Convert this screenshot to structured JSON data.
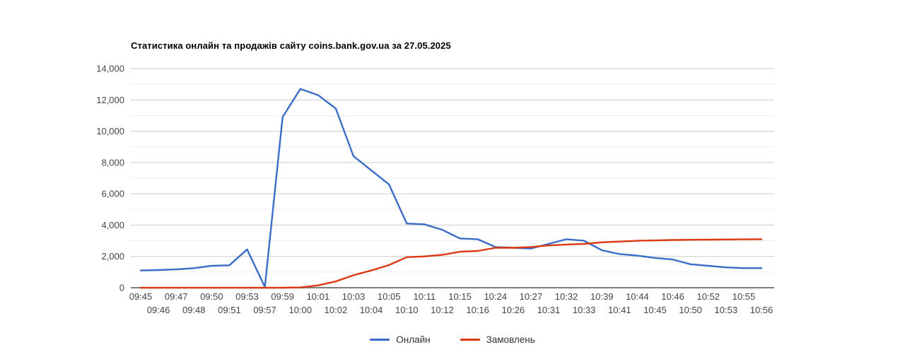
{
  "chart": {
    "title": "Статистика онлайн та продажів сайту coins.bank.gov.ua за 27.05.2025"
  },
  "chart_data": {
    "type": "line",
    "title": "Статистика онлайн та продажів сайту coins.bank.gov.ua за 27.05.2025",
    "xlabel": "",
    "ylabel": "",
    "ylim": [
      0,
      14000
    ],
    "y_tick_step": 2000,
    "y_minor_step": 1000,
    "y_tick_labels": [
      "0",
      "2,000",
      "4,000",
      "6,000",
      "8,000",
      "10,000",
      "12,000",
      "14,000"
    ],
    "grid": "horizontal-only",
    "legend_position": "bottom",
    "categories": [
      "09:45",
      "09:46",
      "09:47",
      "09:48",
      "09:50",
      "09:51",
      "09:53",
      "09:57",
      "09:59",
      "10:00",
      "10:01",
      "10:02",
      "10:03",
      "10:04",
      "10:05",
      "10:10",
      "10:11",
      "10:12",
      "10:15",
      "10:16",
      "10:24",
      "10:26",
      "10:27",
      "10:31",
      "10:32",
      "10:33",
      "10:39",
      "10:41",
      "10:44",
      "10:45",
      "10:46",
      "10:50",
      "10:52",
      "10:53",
      "10:55",
      "10:56"
    ],
    "series": [
      {
        "name": "Онлайн",
        "color": "#3b6cc7",
        "values": [
          1100,
          1130,
          1170,
          1250,
          1400,
          1430,
          2450,
          50,
          10900,
          12700,
          12300,
          11450,
          8400,
          7500,
          6600,
          4100,
          4050,
          3700,
          3150,
          3100,
          2600,
          2550,
          2500,
          2800,
          3100,
          3000,
          2400,
          2150,
          2050,
          1900,
          1800,
          1500,
          1400,
          1300,
          1250,
          1250
        ]
      },
      {
        "name": "Замовлень",
        "color": "#dc3912",
        "values": [
          0,
          0,
          0,
          0,
          0,
          0,
          0,
          0,
          0,
          20,
          150,
          400,
          800,
          1100,
          1450,
          1950,
          2000,
          2100,
          2300,
          2350,
          2550,
          2550,
          2600,
          2700,
          2760,
          2800,
          2900,
          2950,
          3000,
          3020,
          3050,
          3060,
          3070,
          3080,
          3090,
          3100
        ]
      }
    ],
    "colors": {
      "axis_line": "#7d7d7d",
      "major_grid": "#cccccc",
      "minor_grid": "#ededed",
      "tick_label": "#444444"
    }
  }
}
